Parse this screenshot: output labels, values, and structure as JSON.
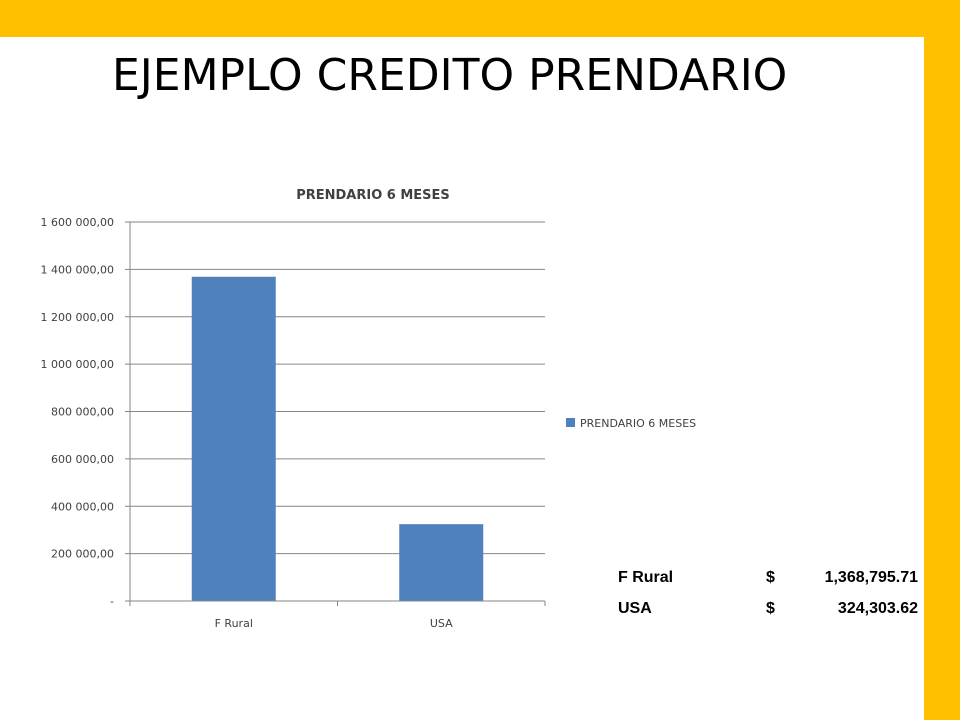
{
  "slide": {
    "title": "EJEMPLO CREDITO PRENDARIO",
    "accent_color": "#FFC000"
  },
  "chart_data": {
    "type": "bar",
    "title": "PRENDARIO 6 MESES",
    "categories": [
      "F Rural",
      "USA"
    ],
    "series": [
      {
        "name": "PRENDARIO 6 MESES",
        "values": [
          1368795.71,
          324303.62
        ],
        "color": "#4F81BD"
      }
    ],
    "ylim": [
      0,
      1600000
    ],
    "yticks": [
      0,
      200000,
      400000,
      600000,
      800000,
      1000000,
      1200000,
      1400000,
      1600000
    ],
    "ytick_labels": [
      "-",
      "200 000,00",
      "400 000,00",
      "600 000,00",
      "800 000,00",
      "1 000 000,00",
      "1 200 000,00",
      "1 400 000,00",
      "1 600 000,00"
    ],
    "xlabel": "",
    "ylabel": "",
    "grid": true,
    "legend_position": "right"
  },
  "summary_table": {
    "rows": [
      {
        "label": "F Rural",
        "currency": "$",
        "amount": "1,368,795.71"
      },
      {
        "label": "USA",
        "currency": "$",
        "amount": "324,303.62"
      }
    ]
  }
}
